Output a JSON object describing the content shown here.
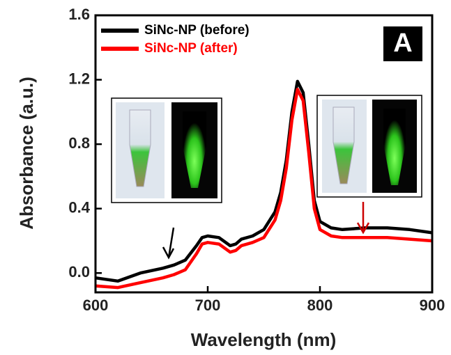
{
  "chart_data": {
    "type": "line",
    "x_label": "Wavelength (nm)",
    "y_label": "Absorbance (a.u.)",
    "annotation": "A",
    "x": [
      600,
      620,
      640,
      660,
      670,
      680,
      690,
      695,
      700,
      710,
      720,
      725,
      730,
      740,
      750,
      760,
      765,
      770,
      775,
      780,
      785,
      790,
      795,
      800,
      810,
      820,
      840,
      860,
      880,
      900
    ],
    "series": [
      {
        "name": "SiNc-NP (before)",
        "color": "#000000",
        "values": [
          -0.03,
          -0.05,
          0.0,
          0.03,
          0.05,
          0.08,
          0.17,
          0.22,
          0.23,
          0.22,
          0.17,
          0.18,
          0.21,
          0.23,
          0.27,
          0.38,
          0.5,
          0.7,
          1.0,
          1.19,
          1.12,
          0.8,
          0.45,
          0.32,
          0.28,
          0.27,
          0.28,
          0.28,
          0.27,
          0.25
        ]
      },
      {
        "name": "SiNc-NP (after)",
        "color": "#ff0000",
        "values": [
          -0.08,
          -0.09,
          -0.06,
          -0.03,
          -0.01,
          0.02,
          0.12,
          0.18,
          0.19,
          0.18,
          0.13,
          0.14,
          0.17,
          0.19,
          0.22,
          0.33,
          0.45,
          0.65,
          0.95,
          1.14,
          1.07,
          0.75,
          0.4,
          0.27,
          0.23,
          0.22,
          0.22,
          0.22,
          0.21,
          0.2
        ]
      }
    ],
    "xlim": [
      600,
      900
    ],
    "xticks": [
      600,
      700,
      800,
      900
    ],
    "ylim": [
      -0.12,
      1.6
    ],
    "yticks": [
      {
        "value": 0,
        "label": "0.0"
      },
      0.4,
      0.8,
      1.2,
      1.6
    ],
    "legend": "upper left"
  }
}
